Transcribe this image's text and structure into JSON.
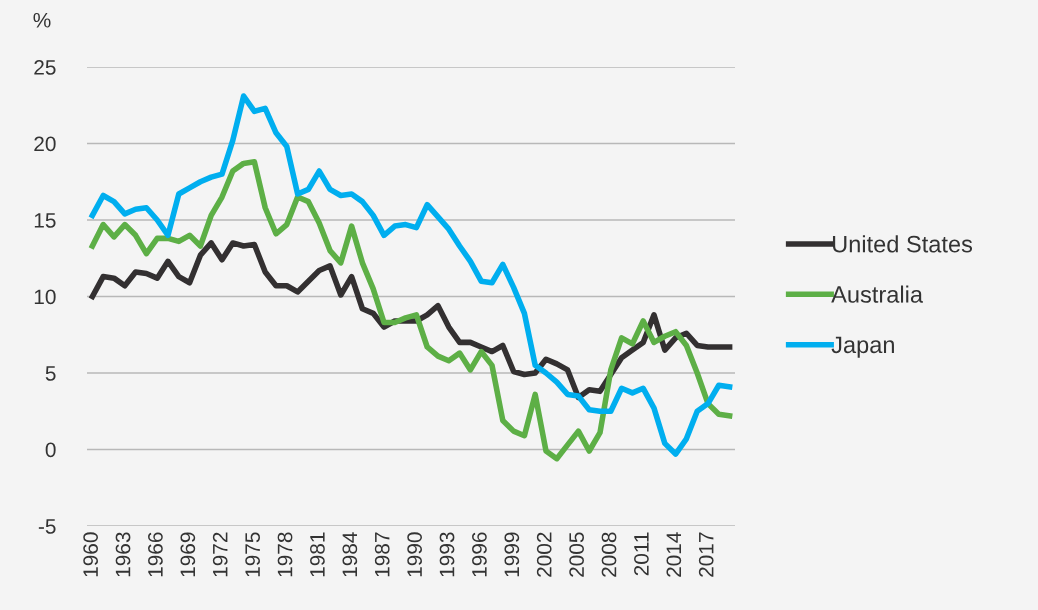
{
  "chart_data": {
    "type": "line",
    "ylabel": "%",
    "categories": [
      "1960",
      null,
      null,
      "1963",
      null,
      null,
      "1966",
      null,
      null,
      "1969",
      null,
      null,
      "1972",
      null,
      null,
      "1975",
      null,
      null,
      "1978",
      null,
      null,
      "1981",
      null,
      null,
      "1984",
      null,
      null,
      "1987",
      null,
      null,
      "1990",
      null,
      null,
      "1993",
      null,
      null,
      "1996",
      null,
      null,
      "1999",
      null,
      null,
      "2002",
      null,
      null,
      "2005",
      null,
      null,
      "2008",
      null,
      null,
      "2011",
      null,
      null,
      "2014",
      null,
      null,
      "2017",
      null,
      null
    ],
    "series": [
      {
        "name": "United States",
        "color": "#333031",
        "values": [
          10.0,
          11.3,
          11.2,
          10.7,
          11.6,
          11.5,
          11.2,
          12.3,
          11.3,
          10.9,
          12.7,
          13.5,
          12.4,
          13.5,
          13.3,
          13.4,
          11.6,
          10.7,
          10.7,
          10.3,
          11.0,
          11.7,
          12.0,
          10.1,
          11.3,
          9.2,
          8.9,
          8.0,
          8.4,
          8.4,
          8.4,
          8.8,
          9.4,
          8.0,
          7.0,
          7.0,
          6.7,
          6.4,
          6.8,
          5.1,
          4.9,
          5.0,
          5.9,
          5.6,
          5.2,
          3.4,
          3.9,
          3.8,
          4.9,
          6.0,
          6.5,
          7.0,
          8.8,
          6.5,
          7.3,
          7.6,
          6.8,
          6.7,
          6.7,
          6.7
        ]
      },
      {
        "name": "Australia",
        "color": "#5daf46",
        "values": [
          13.3,
          14.7,
          13.9,
          14.7,
          14.0,
          12.8,
          13.8,
          13.8,
          13.6,
          14.0,
          13.3,
          15.3,
          16.5,
          18.2,
          18.7,
          18.8,
          15.8,
          14.1,
          14.7,
          16.5,
          16.2,
          14.8,
          13.0,
          12.2,
          14.6,
          12.2,
          10.5,
          8.3,
          8.3,
          8.6,
          8.8,
          6.7,
          6.1,
          5.8,
          6.3,
          5.2,
          6.4,
          5.5,
          1.9,
          1.2,
          0.9,
          3.6,
          -0.1,
          -0.6,
          0.3,
          1.2,
          -0.1,
          1.1,
          5.2,
          7.3,
          6.9,
          8.4,
          7.0,
          7.4,
          7.7,
          6.8,
          5.0,
          3.0,
          2.3,
          2.2
        ]
      },
      {
        "name": "Japan",
        "color": "#00aeef",
        "values": [
          15.3,
          16.6,
          16.2,
          15.4,
          15.7,
          15.8,
          15.0,
          14.0,
          16.7,
          17.1,
          17.5,
          17.8,
          18.0,
          20.2,
          23.1,
          22.1,
          22.3,
          20.7,
          19.8,
          16.7,
          17.0,
          18.2,
          17.0,
          16.6,
          16.7,
          16.2,
          15.3,
          14.0,
          14.6,
          14.7,
          14.5,
          16.0,
          15.2,
          14.4,
          13.3,
          12.3,
          11.0,
          10.9,
          12.1,
          10.6,
          8.9,
          5.5,
          5.0,
          4.4,
          3.6,
          3.5,
          2.6,
          2.5,
          2.5,
          4.0,
          3.7,
          4.0,
          2.7,
          0.4,
          -0.3,
          0.7,
          2.5,
          3.0,
          4.2,
          4.1
        ]
      }
    ],
    "ylim": [
      -5,
      25
    ],
    "yticks": [
      -5,
      0,
      5,
      10,
      15,
      20,
      25
    ],
    "grid": "y",
    "legend": "right",
    "marker": "none",
    "line_style": "solid"
  }
}
